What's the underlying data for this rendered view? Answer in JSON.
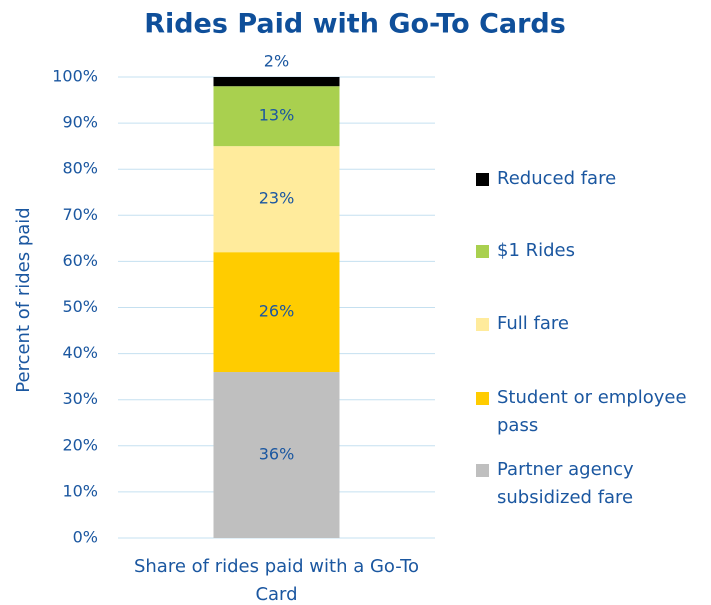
{
  "chart_data": {
    "type": "stacked_bar",
    "title": "Rides Paid with Go-To Cards",
    "y_label": "Percent of rides paid",
    "categories": [
      "Share of rides paid with a Go-To Card"
    ],
    "series": [
      {
        "name": "Partner agency subsidized fare",
        "color": "#bfbfbf",
        "values": [
          36
        ],
        "value_labels": [
          "36%"
        ]
      },
      {
        "name": "Student or employee pass",
        "color": "#ffcc00",
        "values": [
          26
        ],
        "value_labels": [
          "26%"
        ]
      },
      {
        "name": "Full fare",
        "color": "#ffeb9c",
        "values": [
          23
        ],
        "value_labels": [
          "23%"
        ]
      },
      {
        "name": "$1 Rides",
        "color": "#a9d04f",
        "values": [
          13
        ],
        "value_labels": [
          "13%"
        ]
      },
      {
        "name": "Reduced fare",
        "color": "#000000",
        "values": [
          2
        ],
        "value_labels": [
          "2%"
        ]
      }
    ],
    "ylim": [
      0,
      100
    ],
    "yticks": [
      {
        "value": 0,
        "label": "0%"
      },
      {
        "value": 10,
        "label": "10%"
      },
      {
        "value": 20,
        "label": "20%"
      },
      {
        "value": 30,
        "label": "30%"
      },
      {
        "value": 40,
        "label": "40%"
      },
      {
        "value": 50,
        "label": "50%"
      },
      {
        "value": 60,
        "label": "60%"
      },
      {
        "value": 70,
        "label": "70%"
      },
      {
        "value": 80,
        "label": "80%"
      },
      {
        "value": 90,
        "label": "90%"
      },
      {
        "value": 100,
        "label": "100%"
      }
    ],
    "grid": true
  }
}
